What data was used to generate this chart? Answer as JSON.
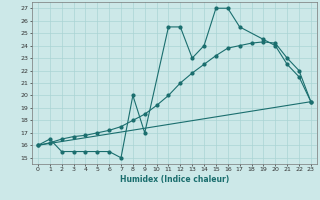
{
  "xlabel": "Humidex (Indice chaleur)",
  "bg_color": "#cce8e8",
  "grid_color": "#aad4d4",
  "line_color": "#1a6e6e",
  "xlim": [
    -0.5,
    23.5
  ],
  "ylim": [
    14.5,
    27.5
  ],
  "xticks": [
    0,
    1,
    2,
    3,
    4,
    5,
    6,
    7,
    8,
    9,
    10,
    11,
    12,
    13,
    14,
    15,
    16,
    17,
    18,
    19,
    20,
    21,
    22,
    23
  ],
  "yticks": [
    15,
    16,
    17,
    18,
    19,
    20,
    21,
    22,
    23,
    24,
    25,
    26,
    27
  ],
  "line1_x": [
    0,
    1,
    2,
    3,
    4,
    5,
    6,
    7,
    8,
    9,
    11,
    12,
    13,
    14,
    15,
    16,
    17,
    19,
    20,
    21,
    22,
    23
  ],
  "line1_y": [
    16.0,
    16.5,
    15.5,
    15.5,
    15.5,
    15.5,
    15.5,
    15.0,
    20.0,
    17.0,
    25.5,
    25.5,
    23.0,
    24.0,
    27.0,
    27.0,
    25.5,
    24.5,
    24.0,
    22.5,
    21.5,
    19.5
  ],
  "line2_x": [
    0,
    1,
    2,
    3,
    4,
    5,
    6,
    7,
    8,
    9,
    10,
    11,
    12,
    13,
    14,
    15,
    16,
    17,
    18,
    19,
    20,
    21,
    22,
    23
  ],
  "line2_y": [
    16.0,
    16.2,
    16.5,
    16.7,
    16.8,
    17.0,
    17.2,
    17.5,
    18.0,
    18.5,
    19.2,
    20.0,
    21.0,
    21.8,
    22.5,
    23.2,
    23.8,
    24.0,
    24.2,
    24.3,
    24.2,
    23.0,
    22.0,
    19.5
  ],
  "line3_x": [
    0,
    23
  ],
  "line3_y": [
    16.0,
    19.5
  ]
}
